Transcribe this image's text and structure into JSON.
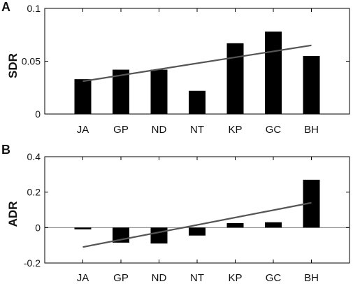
{
  "chart_data": [
    {
      "panel": "A",
      "type": "bar",
      "ylabel": "SDR",
      "categories": [
        "JA",
        "GP",
        "ND",
        "NT",
        "KP",
        "GC",
        "BH"
      ],
      "values": [
        0.033,
        0.042,
        0.042,
        0.022,
        0.067,
        0.078,
        0.055
      ],
      "trendline": {
        "start": 0.031,
        "end": 0.065
      },
      "ylim": [
        0,
        0.1
      ],
      "yticks": [
        "0",
        "0.05",
        "0.1"
      ],
      "ytick_values": [
        0,
        0.05,
        0.1
      ],
      "grid": false,
      "zero_line": false
    },
    {
      "panel": "B",
      "type": "bar",
      "ylabel": "ADR",
      "categories": [
        "JA",
        "GP",
        "ND",
        "NT",
        "KP",
        "GC",
        "BH"
      ],
      "values": [
        -0.01,
        -0.085,
        -0.09,
        -0.045,
        0.025,
        0.03,
        0.27
      ],
      "trendline": {
        "start": -0.11,
        "end": 0.14
      },
      "ylim": [
        -0.2,
        0.4
      ],
      "yticks": [
        "-0.2",
        "0",
        "0.2",
        "0.4"
      ],
      "ytick_values": [
        -0.2,
        0,
        0.2,
        0.4
      ],
      "grid": false,
      "zero_line": true
    }
  ],
  "colors": {
    "bar": "#000000",
    "trendline": "#555555",
    "zero_line": "#888888",
    "axis": "#000000"
  }
}
